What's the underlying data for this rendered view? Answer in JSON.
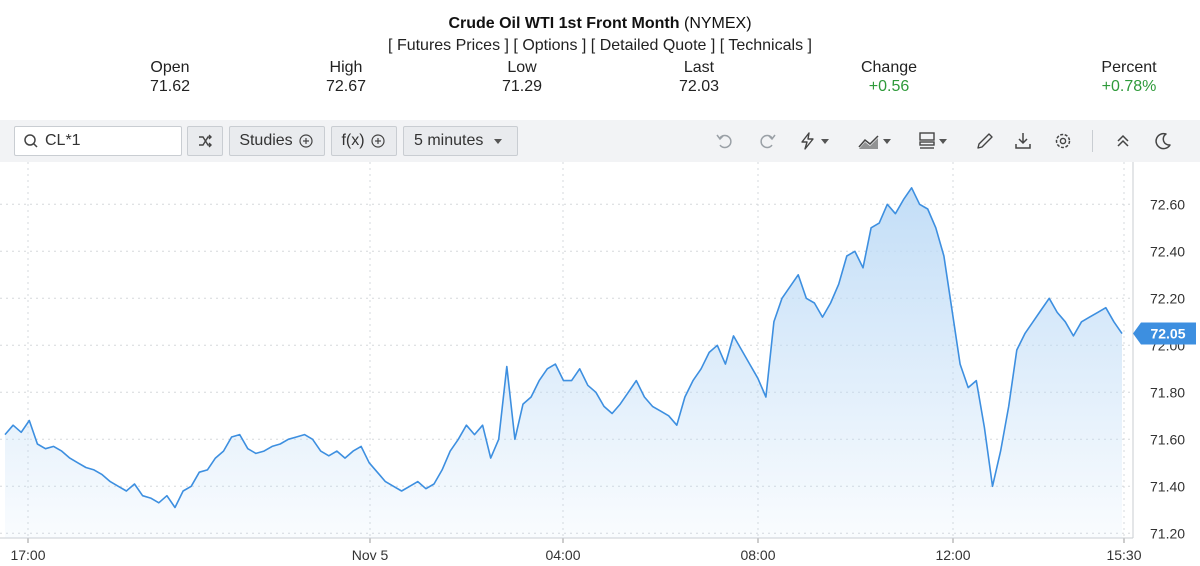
{
  "header": {
    "title_bold": "Crude Oil WTI 1st Front Month",
    "title_exchange": "(NYMEX)",
    "links": [
      "Futures Prices",
      "Options",
      "Detailed Quote",
      "Technicals"
    ],
    "stats": [
      {
        "label": "Open",
        "value": "71.62"
      },
      {
        "label": "High",
        "value": "72.67"
      },
      {
        "label": "Low",
        "value": "71.29"
      },
      {
        "label": "Last",
        "value": "72.03"
      },
      {
        "label": "Change",
        "value": "+0.56"
      },
      {
        "label": "Percent",
        "value": "+0.78%"
      }
    ]
  },
  "toolbar": {
    "symbol_value": "CL*1",
    "studies_label": "Studies",
    "fx_label": "f(x)",
    "interval_label": "5 minutes",
    "icons": [
      "search-icon",
      "compare-icon",
      "plus-circle-icon",
      "undo-icon",
      "redo-icon",
      "lightning-icon",
      "chart-type-icon",
      "layout-icon",
      "pencil-icon",
      "download-icon",
      "gear-icon",
      "collapse-icon",
      "moon-icon"
    ]
  },
  "colors": {
    "line": "#3d8fe0",
    "fill_top": "#bcdaf6",
    "positive": "#2e9a3a",
    "last_tag": "#3d8fe0"
  },
  "chart_data": {
    "type": "area",
    "x_ticks": [
      "17:00",
      "Nov 5",
      "04:00",
      "08:00",
      "12:00",
      "15:30"
    ],
    "y_ticks": [
      72.6,
      72.4,
      72.2,
      72.0,
      71.8,
      71.6,
      71.4,
      71.2
    ],
    "ylim": [
      71.18,
      72.78
    ],
    "grid": true,
    "last_value": "72.05",
    "series": [
      {
        "values": [
          71.62,
          71.66,
          71.63,
          71.68,
          71.58,
          71.56,
          71.57,
          71.55,
          71.52,
          71.5,
          71.48,
          71.47,
          71.45,
          71.42,
          71.4,
          71.38,
          71.41,
          71.36,
          71.35,
          71.33,
          71.36,
          71.31,
          71.38,
          71.4,
          71.46,
          71.47,
          71.52,
          71.55,
          71.61,
          71.62,
          71.56,
          71.54,
          71.55,
          71.57,
          71.58,
          71.6,
          71.61,
          71.62,
          71.6,
          71.55,
          71.53,
          71.55,
          71.52,
          71.55,
          71.57,
          71.5,
          71.46,
          71.42,
          71.4,
          71.38,
          71.4,
          71.42,
          71.39,
          71.41,
          71.47,
          71.55,
          71.6,
          71.66,
          71.62,
          71.66,
          71.52,
          71.6,
          71.91,
          71.6,
          71.75,
          71.78,
          71.85,
          71.9,
          71.92,
          71.85,
          71.85,
          71.9,
          71.83,
          71.8,
          71.74,
          71.71,
          71.75,
          71.8,
          71.85,
          71.78,
          71.74,
          71.72,
          71.7,
          71.66,
          71.78,
          71.85,
          71.9,
          71.97,
          72.0,
          71.92,
          72.04,
          71.98,
          71.92,
          71.86,
          71.78,
          72.1,
          72.2,
          72.25,
          72.3,
          72.2,
          72.18,
          72.12,
          72.18,
          72.26,
          72.38,
          72.4,
          72.33,
          72.5,
          72.52,
          72.6,
          72.56,
          72.62,
          72.67,
          72.6,
          72.58,
          72.5,
          72.38,
          72.15,
          71.92,
          71.82,
          71.85,
          71.65,
          71.4,
          71.55,
          71.74,
          71.98,
          72.05,
          72.1,
          72.15,
          72.2,
          72.14,
          72.1,
          72.04,
          72.1,
          72.12,
          72.14,
          72.16,
          72.1,
          72.05
        ]
      }
    ]
  }
}
